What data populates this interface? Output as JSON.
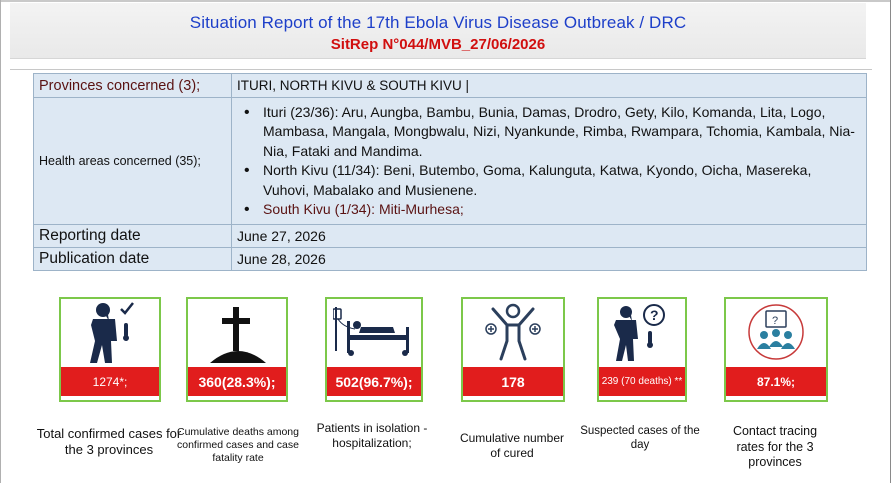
{
  "header": {
    "title": "Situation Report of the 17th Ebola Virus Disease Outbreak / DRC",
    "subtitle": "SitRep N°044/MVB_27/06/2026"
  },
  "info_table": {
    "provinces_label": "Provinces concerned (3);",
    "provinces_value": "ITURI, NORTH KIVU & SOUTH KIVU |",
    "health_areas_label": "Health areas concerned (35);",
    "health_areas": [
      "Ituri (23/36): Aru, Aungba, Bambu, Bunia, Damas, Drodro, Gety, Kilo, Komanda, Lita, Logo, Mambasa, Mangala, Mongbwalu, Nizi, Nyankunde, Rimba, Rwampara, Tchomia, Kambala, Nia-Nia, Fataki and Mandima.",
      "North Kivu (11/34): Beni, Butembo, Goma, Kalunguta, Katwa, Kyondo, Oicha, Masereka, Vuhovi, Mabalako and Musienene.",
      "South Kivu (1/34): Miti-Murhesa;"
    ],
    "reporting_label": "Reporting date",
    "reporting_value": "June 27, 2026",
    "publication_label": "Publication date",
    "publication_value": "June 28, 2026"
  },
  "indicators": [
    {
      "value": "1274*;",
      "caption": "Total confirmed cases for the 3 provinces",
      "icon": "sick-person-icon"
    },
    {
      "value": "360(28.3%);",
      "caption": "Cumulative deaths among confirmed cases and case fatality rate",
      "icon": "grave-cross-icon"
    },
    {
      "value": "502(96.7%);",
      "caption": "Patients in isolation - hospitalization;",
      "icon": "hospital-bed-icon"
    },
    {
      "value": "178",
      "caption": "Cumulative number of cured",
      "icon": "cured-person-icon"
    },
    {
      "value": "239 (70 deaths) **",
      "caption": "Suspected cases of the day",
      "icon": "suspected-person-icon"
    },
    {
      "value": "87.1%;",
      "caption": "Contact tracing rates for the 3 provinces",
      "icon": "contact-tracing-icon"
    }
  ],
  "colors": {
    "title_blue": "#1d3fc9",
    "subtitle_red": "#d10f0f",
    "badge_red": "#e11d1d",
    "card_border_green": "#7cc84a",
    "table_bg": "#dde8f3"
  }
}
